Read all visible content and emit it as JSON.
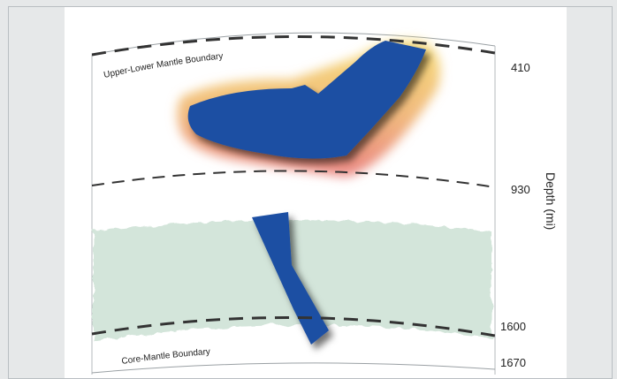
{
  "diagram": {
    "boundaries": {
      "upper_lower": "Upper-Lower Mantle Boundary",
      "core_mantle": "Core-Mantle Boundary"
    },
    "depth_axis": {
      "title": "Depth (mi)",
      "ticks": [
        "410",
        "930",
        "1600",
        "1670"
      ]
    },
    "colors": {
      "slab": "#1f4fa3",
      "warm_outer": "#f3d77a",
      "warm_inner": "#ec8f86",
      "cool_zone": "#d3e5da",
      "dashed_line": "#3a3a3a",
      "background": "#e6e8e9"
    }
  }
}
